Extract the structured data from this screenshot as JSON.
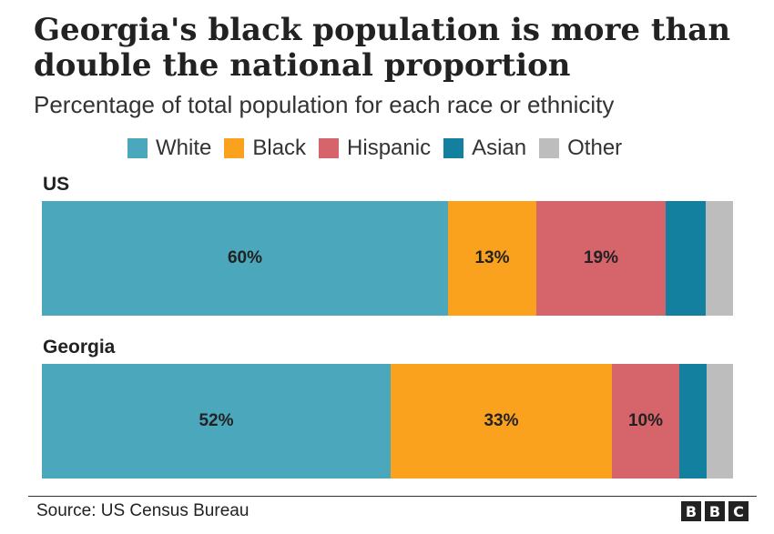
{
  "title": "Georgia's black population is more than double the national proportion",
  "subtitle": "Percentage of total population for each race or ethnicity",
  "source": "Source: US Census Bureau",
  "logo": "BBC",
  "chart_data": {
    "type": "bar",
    "orientation": "horizontal",
    "stacked": true,
    "normalized_percent": true,
    "legend_position": "top",
    "title": "Georgia's black population is more than double the national proportion",
    "subtitle": "Percentage of total population for each race or ethnicity",
    "categories": [
      "US",
      "Georgia"
    ],
    "series": [
      {
        "name": "White",
        "color": "#4ba7bb",
        "values": [
          60,
          52
        ],
        "labels": [
          "60%",
          "52%"
        ]
      },
      {
        "name": "Black",
        "color": "#faa21d",
        "values": [
          13,
          33
        ],
        "labels": [
          "13%",
          "33%"
        ]
      },
      {
        "name": "Hispanic",
        "color": "#d5646b",
        "values": [
          19,
          10
        ],
        "labels": [
          "19%",
          "10%"
        ]
      },
      {
        "name": "Asian",
        "color": "#1480a0",
        "values": [
          6,
          4
        ],
        "labels": [
          "",
          ""
        ]
      },
      {
        "name": "Other",
        "color": "#bdbdbd",
        "values": [
          4,
          4
        ],
        "labels": [
          "",
          ""
        ]
      }
    ]
  }
}
